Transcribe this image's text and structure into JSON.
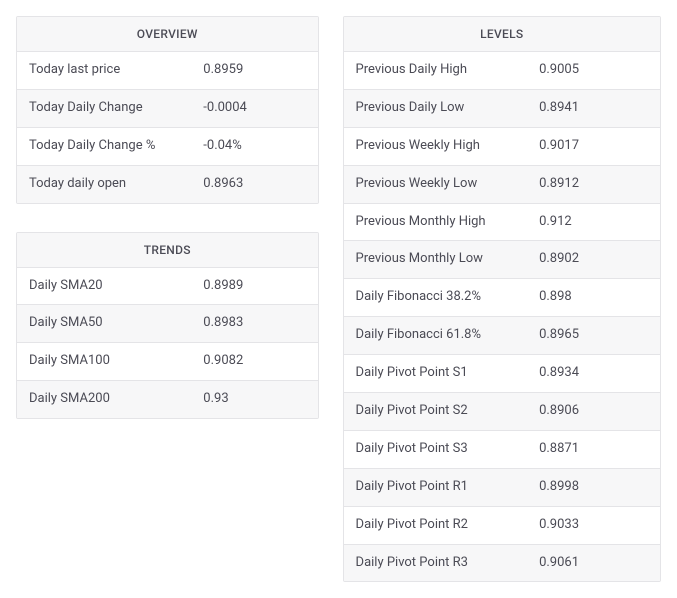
{
  "styling": {
    "border_color": "#e4e4e7",
    "stripe_bg": "#f7f7f8",
    "row_bg": "#ffffff",
    "text_color": "#4b4b55",
    "header_fontsize": 12,
    "cell_fontsize": 13,
    "label_col_pct": 58
  },
  "overview": {
    "title": "OVERVIEW",
    "rows": [
      {
        "label": "Today last price",
        "value": "0.8959"
      },
      {
        "label": "Today Daily Change",
        "value": "-0.0004"
      },
      {
        "label": "Today Daily Change %",
        "value": "-0.04%"
      },
      {
        "label": "Today daily open",
        "value": "0.8963"
      }
    ]
  },
  "trends": {
    "title": "TRENDS",
    "rows": [
      {
        "label": "Daily SMA20",
        "value": "0.8989"
      },
      {
        "label": "Daily SMA50",
        "value": "0.8983"
      },
      {
        "label": "Daily SMA100",
        "value": "0.9082"
      },
      {
        "label": "Daily SMA200",
        "value": "0.93"
      }
    ]
  },
  "levels": {
    "title": "LEVELS",
    "rows": [
      {
        "label": "Previous Daily High",
        "value": "0.9005"
      },
      {
        "label": "Previous Daily Low",
        "value": "0.8941"
      },
      {
        "label": "Previous Weekly High",
        "value": "0.9017"
      },
      {
        "label": "Previous Weekly Low",
        "value": "0.8912"
      },
      {
        "label": "Previous Monthly High",
        "value": "0.912"
      },
      {
        "label": "Previous Monthly Low",
        "value": "0.8902"
      },
      {
        "label": "Daily Fibonacci 38.2%",
        "value": "0.898"
      },
      {
        "label": "Daily Fibonacci 61.8%",
        "value": "0.8965"
      },
      {
        "label": "Daily Pivot Point S1",
        "value": "0.8934"
      },
      {
        "label": "Daily Pivot Point S2",
        "value": "0.8906"
      },
      {
        "label": "Daily Pivot Point S3",
        "value": "0.8871"
      },
      {
        "label": "Daily Pivot Point R1",
        "value": "0.8998"
      },
      {
        "label": "Daily Pivot Point R2",
        "value": "0.9033"
      },
      {
        "label": "Daily Pivot Point R3",
        "value": "0.9061"
      }
    ]
  }
}
